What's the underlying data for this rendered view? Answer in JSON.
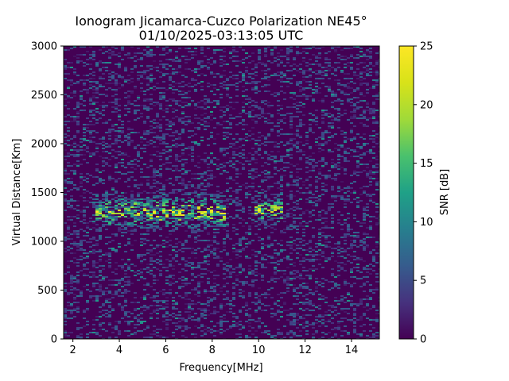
{
  "chart_data": {
    "type": "heatmap",
    "title": "Ionogram Jicamarca-Cuzco Polarization NE45°",
    "subtitle": "01/10/2025-03:13:05 UTC",
    "xlabel": "Frequency[MHz]",
    "ylabel": "Virtual Distance[Km]",
    "xlim": [
      1.6,
      15.2
    ],
    "ylim": [
      0,
      3000
    ],
    "xticks": [
      2,
      4,
      6,
      8,
      10,
      12,
      14
    ],
    "yticks": [
      0,
      500,
      1000,
      1500,
      2000,
      2500,
      3000
    ],
    "colormap": "viridis",
    "colorbar": {
      "label": "SNR [dB]",
      "range": [
        0,
        25
      ],
      "ticks": [
        0,
        5,
        10,
        15,
        20,
        25
      ]
    },
    "grid": false,
    "features": [
      {
        "description": "F-layer echo trace",
        "freq_range_MHz": [
          3.0,
          8.6
        ],
        "distance_range_Km": [
          1100,
          1500
        ],
        "peak_snr_dB": 25
      },
      {
        "description": "Echo cluster",
        "freq_range_MHz": [
          9.8,
          11.0
        ],
        "distance_range_Km": [
          1150,
          1480
        ],
        "peak_snr_dB": 22
      }
    ]
  }
}
